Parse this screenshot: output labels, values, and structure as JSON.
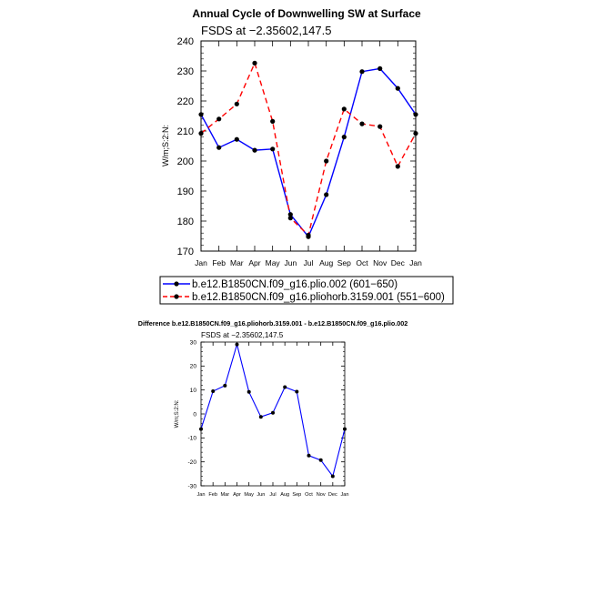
{
  "chart_data": [
    {
      "type": "line",
      "title": "Annual Cycle of Downwelling SW at Surface",
      "subtitle": "FSDS at −2.35602,147.5",
      "xlabel": "",
      "ylabel": "W/m;S:2:N:",
      "categories": [
        "Jan",
        "Feb",
        "Mar",
        "Apr",
        "May",
        "Jun",
        "Jul",
        "Aug",
        "Sep",
        "Oct",
        "Nov",
        "Dec",
        "Jan"
      ],
      "ylim": [
        170,
        240
      ],
      "yticks": [
        170,
        180,
        190,
        200,
        210,
        220,
        230,
        240
      ],
      "grid": false,
      "legend_position": "bottom",
      "series": [
        {
          "name": "b.e12.B1850CN.f09_g16.plio.002 (601−650)",
          "color": "#0000ff",
          "dash": "solid",
          "values": [
            215.5,
            204.5,
            207.2,
            203.6,
            204.0,
            182.2,
            174.8,
            188.8,
            208.0,
            229.8,
            230.8,
            224.2,
            215.5
          ]
        },
        {
          "name": "b.e12.B1850CN.f09_g16.pliohorb.3159.001 (551−600)",
          "color": "#ff0000",
          "dash": "dashed",
          "values": [
            209.2,
            214.0,
            219.0,
            232.6,
            213.2,
            181.0,
            175.3,
            200.0,
            217.3,
            212.4,
            211.5,
            198.2,
            209.2
          ]
        }
      ]
    },
    {
      "type": "line",
      "title": "Difference b.e12.B1850CN.f09_g16.pliohorb.3159.001 - b.e12.B1850CN.f09_g16.plio.002",
      "subtitle": "FSDS at −2.35602,147.5",
      "xlabel": "",
      "ylabel": "W/m;S:2:N:",
      "categories": [
        "Jan",
        "Feb",
        "Mar",
        "Apr",
        "May",
        "Jun",
        "Jul",
        "Aug",
        "Sep",
        "Oct",
        "Nov",
        "Dec",
        "Jan"
      ],
      "ylim": [
        -30,
        30
      ],
      "yticks": [
        -30,
        -20,
        -10,
        0,
        10,
        20,
        30
      ],
      "grid": false,
      "series": [
        {
          "name": "",
          "color": "#0000ff",
          "dash": "solid",
          "values": [
            -6.3,
            9.5,
            11.8,
            29.0,
            9.2,
            -1.2,
            0.5,
            11.2,
            9.3,
            -17.4,
            -19.3,
            -26.0,
            -6.3
          ]
        }
      ]
    }
  ]
}
